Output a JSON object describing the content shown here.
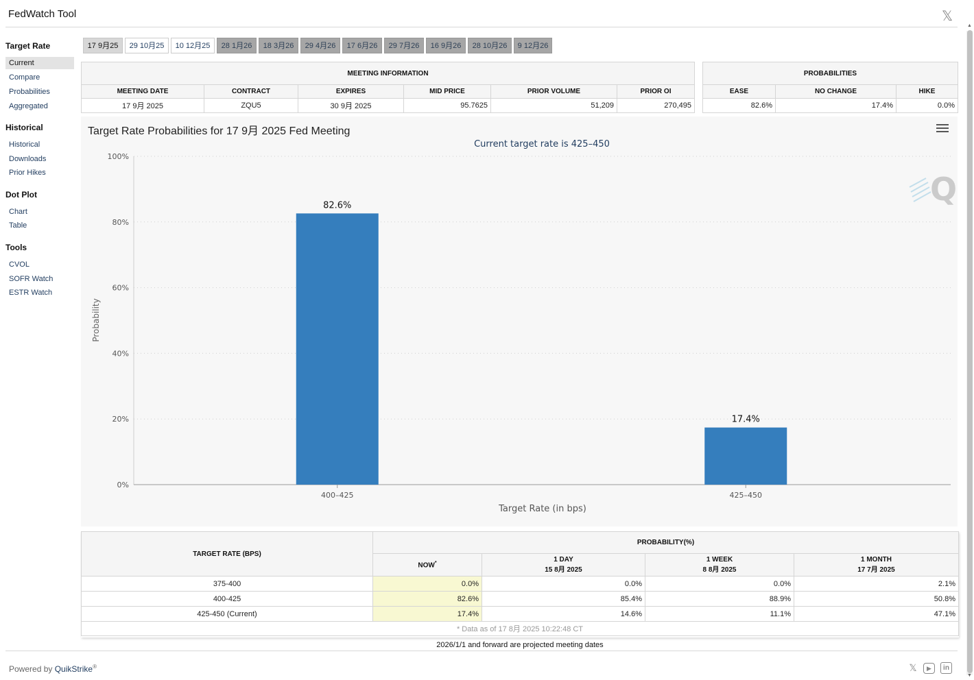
{
  "app": {
    "title": "FedWatch Tool"
  },
  "sidebar": {
    "groups": [
      {
        "title": "Target Rate",
        "items": [
          "Current",
          "Compare",
          "Probabilities",
          "Aggregated"
        ]
      },
      {
        "title": "Historical",
        "items": [
          "Historical",
          "Downloads",
          "Prior Hikes"
        ]
      },
      {
        "title": "Dot Plot",
        "items": [
          "Chart",
          "Table"
        ]
      },
      {
        "title": "Tools",
        "items": [
          "CVOL",
          "SOFR Watch",
          "ESTR Watch"
        ]
      }
    ]
  },
  "tabs": [
    "17 9月25",
    "29 10月25",
    "10 12月25",
    "28 1月26",
    "18 3月26",
    "29 4月26",
    "17 6月26",
    "29 7月26",
    "16 9月26",
    "28 10月26",
    "9 12月26"
  ],
  "meeting_info": {
    "header": "MEETING INFORMATION",
    "columns": [
      "MEETING DATE",
      "CONTRACT",
      "EXPIRES",
      "MID PRICE",
      "PRIOR VOLUME",
      "PRIOR OI"
    ],
    "row": [
      "17 9月 2025",
      "ZQU5",
      "30 9月 2025",
      "95.7625",
      "51,209",
      "270,495"
    ]
  },
  "probabilities": {
    "header": "PROBABILITIES",
    "columns": [
      "EASE",
      "NO CHANGE",
      "HIKE"
    ],
    "row": [
      "82.6%",
      "17.4%",
      "0.0%"
    ]
  },
  "chart_data": {
    "type": "bar",
    "title": "Target Rate Probabilities for 17 9月 2025 Fed Meeting",
    "subtitle": "Current target rate is 425–450",
    "categories": [
      "400–425",
      "425–450"
    ],
    "values": [
      82.6,
      17.4
    ],
    "data_labels": [
      "82.6%",
      "17.4%"
    ],
    "xlabel": "Target Rate (in bps)",
    "ylabel": "Probability",
    "ylim": [
      0,
      100
    ],
    "yticks": [
      "0%",
      "20%",
      "40%",
      "60%",
      "80%",
      "100%"
    ],
    "grid": true,
    "color": "#357ebd"
  },
  "prob_table": {
    "col_target": "TARGET RATE (BPS)",
    "col_prob": "PROBABILITY(%)",
    "subcols": [
      {
        "l1": "NOW",
        "l2": ""
      },
      {
        "l1": "1 DAY",
        "l2": "15 8月 2025"
      },
      {
        "l1": "1 WEEK",
        "l2": "8 8月 2025"
      },
      {
        "l1": "1 MONTH",
        "l2": "17 7月 2025"
      }
    ],
    "now_mark": "*",
    "rows": [
      {
        "rate": "375-400",
        "vals": [
          "0.0%",
          "0.0%",
          "0.0%",
          "2.1%"
        ]
      },
      {
        "rate": "400-425",
        "vals": [
          "82.6%",
          "85.4%",
          "88.9%",
          "50.8%"
        ]
      },
      {
        "rate": "425-450 (Current)",
        "vals": [
          "17.4%",
          "14.6%",
          "11.1%",
          "47.1%"
        ]
      }
    ],
    "footnote": "* Data as of 17 8月 2025 10:22:48 CT"
  },
  "projection_note": "2026/1/1 and forward are projected meeting dates",
  "footer": {
    "powered_by": "Powered by ",
    "brand": "QuikStrike",
    "reg": "®"
  }
}
